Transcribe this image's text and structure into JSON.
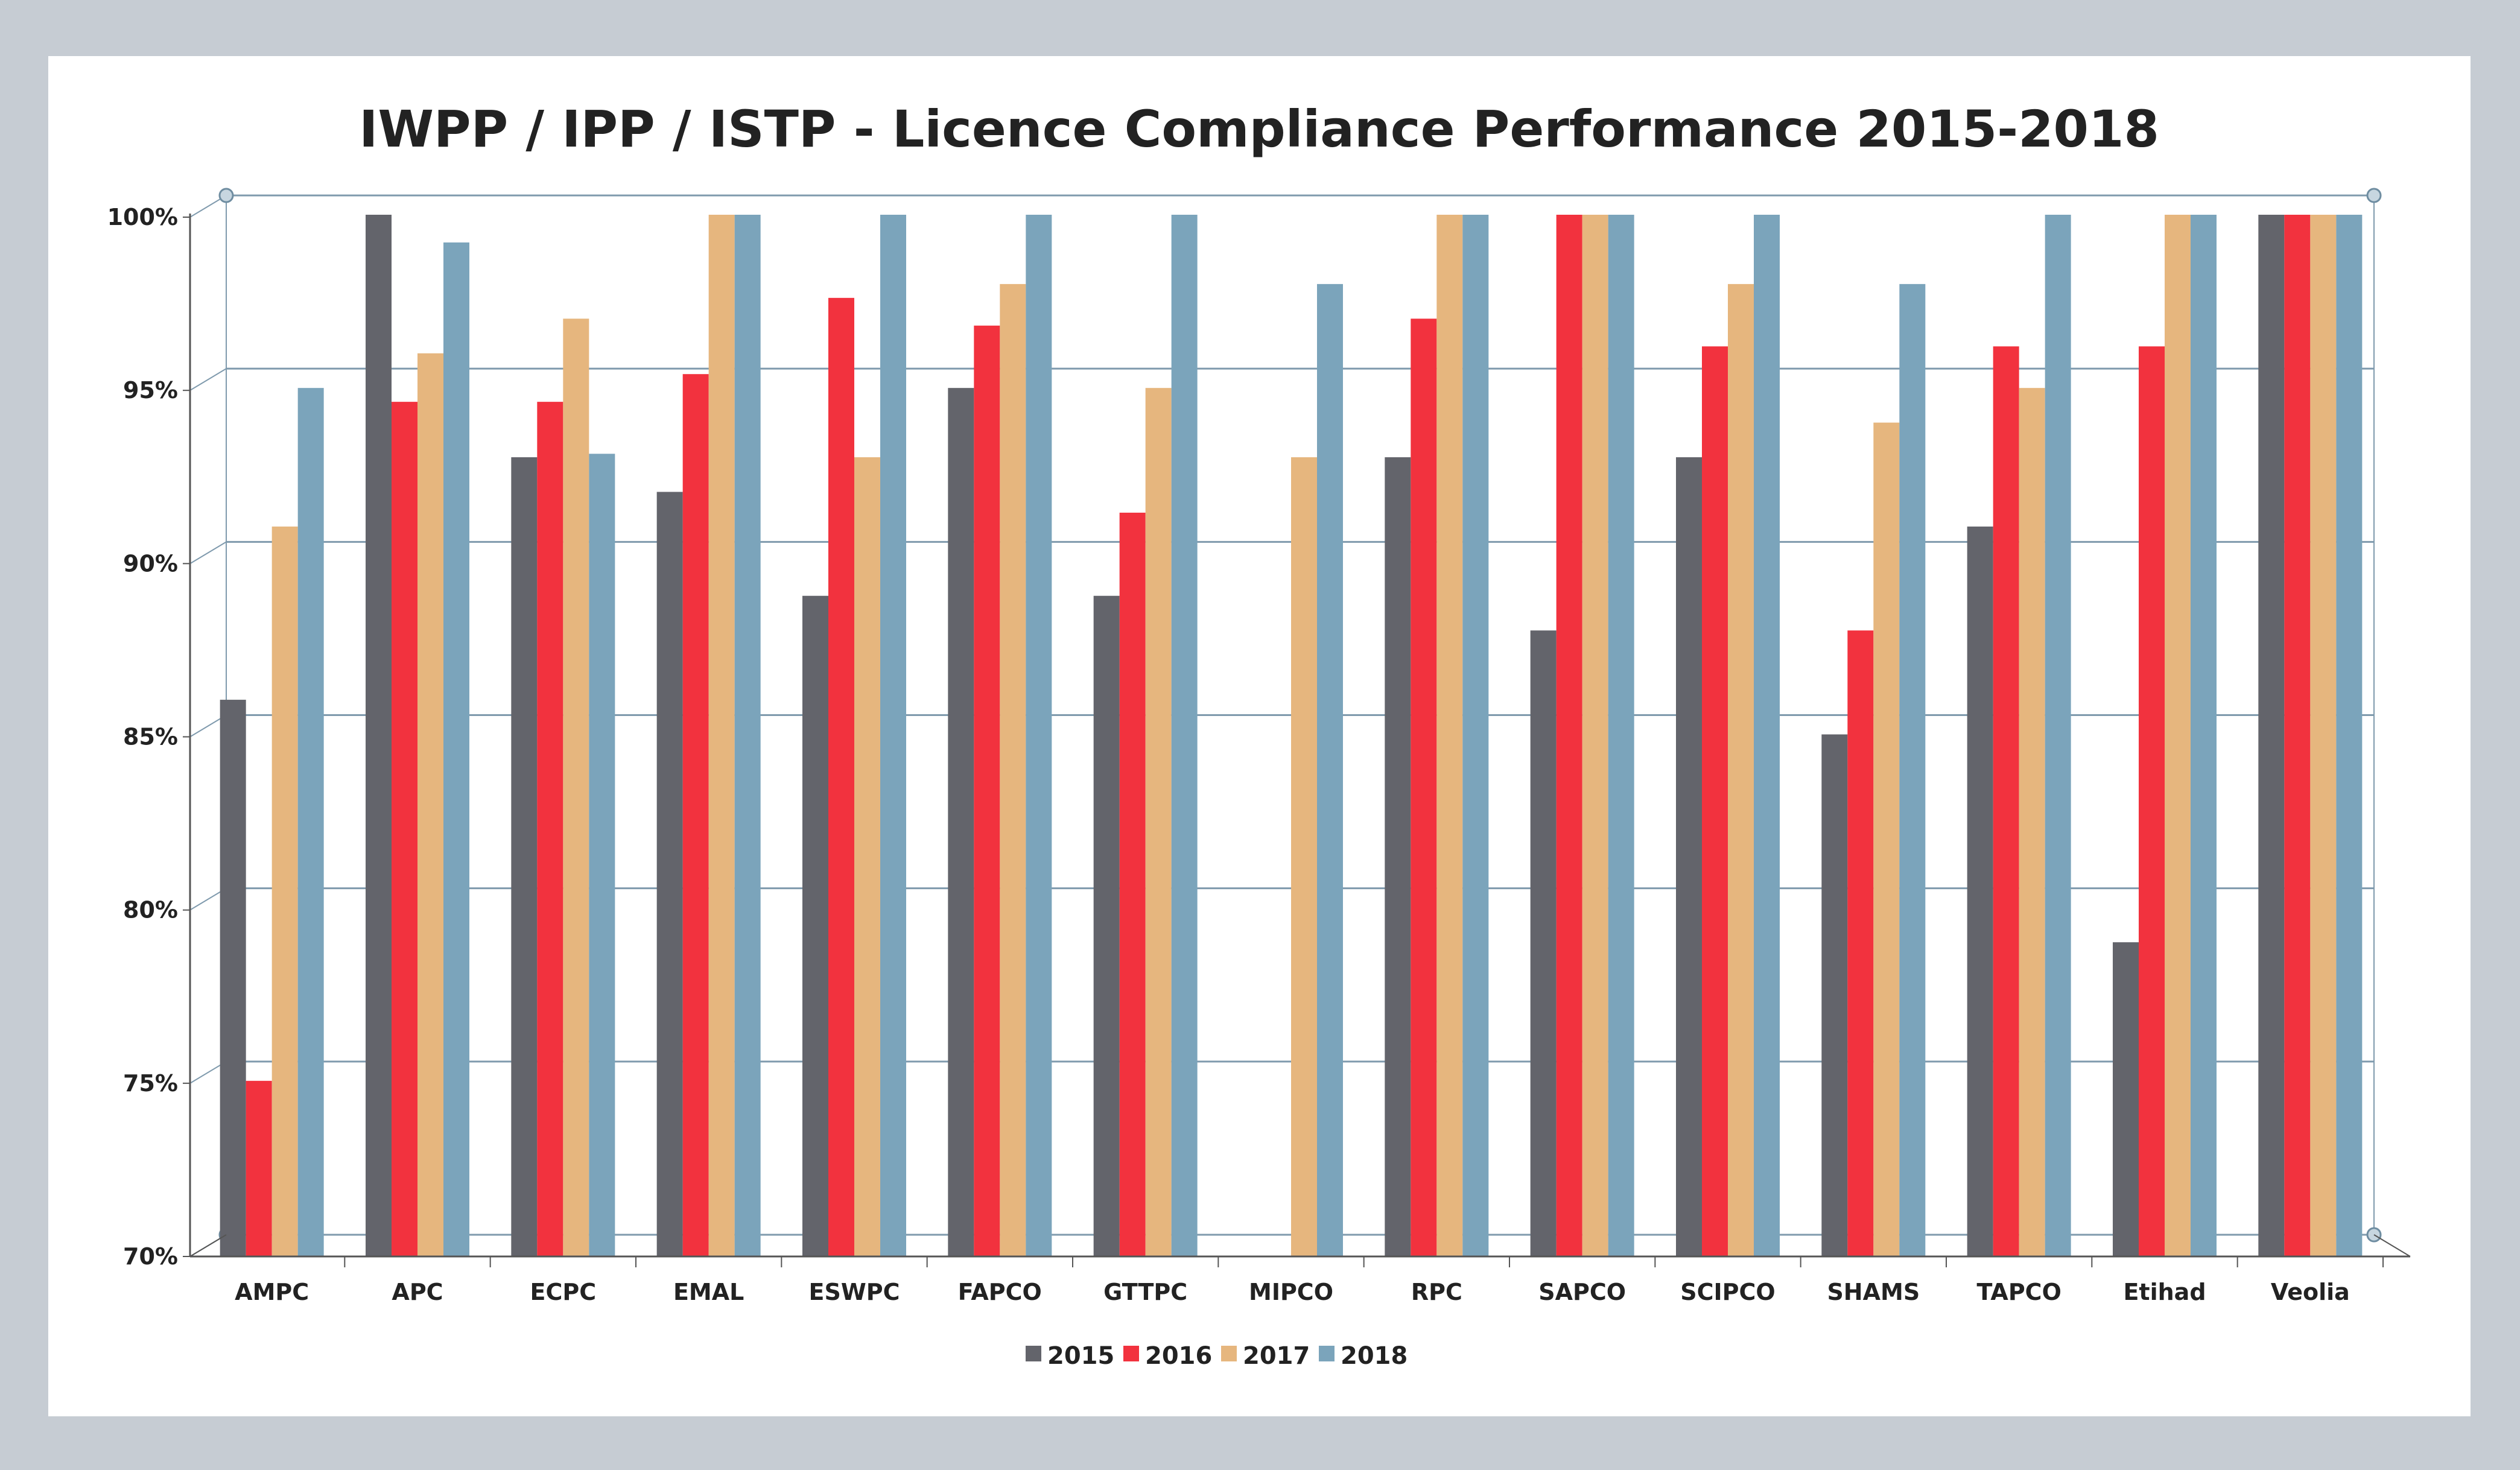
{
  "chart_data": {
    "type": "bar",
    "title": "IWPP / IPP / ISTP - Licence Compliance Performance 2015-2018",
    "xlabel": "",
    "ylabel": "",
    "ylim": [
      70,
      100
    ],
    "yticks": [
      70,
      75,
      80,
      85,
      90,
      95,
      100
    ],
    "ytick_labels": [
      "70%",
      "75%",
      "80%",
      "85%",
      "90%",
      "95%",
      "100%"
    ],
    "grid": true,
    "legend_position": "bottom",
    "categories": [
      "AMPC",
      "APC",
      "ECPC",
      "EMAL",
      "ESWPC",
      "FAPCO",
      "GTTPC",
      "MIPCO",
      "RPC",
      "SAPCO",
      "SCIPCO",
      "SHAMS",
      "TAPCO",
      "Etihad",
      "Veolia"
    ],
    "series": [
      {
        "name": "2015",
        "color": "#63646b",
        "values": [
          86,
          100,
          93,
          92,
          89,
          95,
          89,
          null,
          93,
          88,
          93,
          85,
          91,
          79,
          100
        ]
      },
      {
        "name": "2016",
        "color": "#f2323e",
        "values": [
          75,
          94.6,
          94.6,
          95.4,
          97.6,
          96.8,
          91.4,
          null,
          97,
          100,
          96.2,
          88,
          96.2,
          96.2,
          100
        ]
      },
      {
        "name": "2017",
        "color": "#e6b67e",
        "values": [
          91,
          96,
          97,
          100,
          93,
          98,
          95,
          93,
          100,
          100,
          98,
          94,
          95,
          100,
          100
        ]
      },
      {
        "name": "2018",
        "color": "#7ba4bb",
        "values": [
          95,
          99.2,
          93.1,
          100,
          100,
          100,
          100,
          98,
          100,
          100,
          100,
          98,
          100,
          100,
          100
        ]
      }
    ]
  }
}
